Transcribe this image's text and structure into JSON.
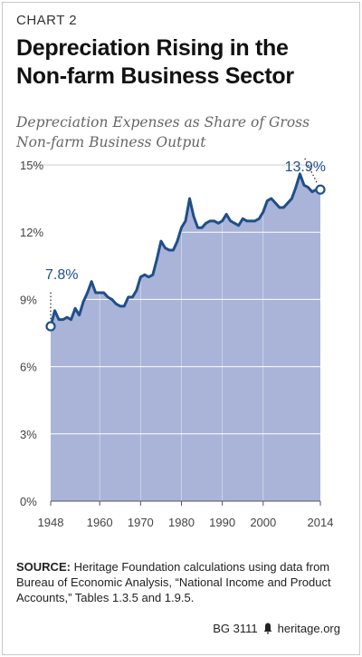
{
  "header": {
    "chart_label": "CHART 2",
    "title": "Depreciation Rising in the Non-farm Business Sector",
    "subtitle": "Depreciation Expenses as Share of Gross Non-farm Business Output"
  },
  "footer": {
    "source_label": "SOURCE:",
    "source_text": "Heritage Foundation calculations using data from Bureau of Economic Analysis, “National Income and Product Accounts,” Tables 1.3.5 and 1.9.5.",
    "report_id": "BG 3111",
    "brand_icon": "liberty-bell-icon",
    "site": "heritage.org"
  },
  "colors": {
    "area": "#a9b4d8",
    "line": "#1f4f8a",
    "grid": "#ffffff",
    "text": "#333333"
  },
  "chart_data": {
    "type": "area",
    "xlim": [
      1948,
      2014
    ],
    "ylim": [
      0,
      15
    ],
    "x_ticks": [
      1948,
      1960,
      1970,
      1980,
      1990,
      2000,
      2014
    ],
    "y_ticks": [
      0,
      3,
      6,
      9,
      12,
      15
    ],
    "y_tick_labels": [
      "0%",
      "3%",
      "6%",
      "9%",
      "12%",
      "15%"
    ],
    "grid": "horizontal",
    "x": [
      1948,
      1949,
      1950,
      1951,
      1952,
      1953,
      1954,
      1955,
      1956,
      1957,
      1958,
      1959,
      1960,
      1961,
      1962,
      1963,
      1964,
      1965,
      1966,
      1967,
      1968,
      1969,
      1970,
      1971,
      1972,
      1973,
      1974,
      1975,
      1976,
      1977,
      1978,
      1979,
      1980,
      1981,
      1982,
      1983,
      1984,
      1985,
      1986,
      1987,
      1988,
      1989,
      1990,
      1991,
      1992,
      1993,
      1994,
      1995,
      1996,
      1997,
      1998,
      1999,
      2000,
      2001,
      2002,
      2003,
      2004,
      2005,
      2006,
      2007,
      2008,
      2009,
      2010,
      2011,
      2012,
      2013,
      2014
    ],
    "values": [
      7.8,
      8.5,
      8.1,
      8.1,
      8.2,
      8.1,
      8.6,
      8.3,
      8.9,
      9.3,
      9.8,
      9.3,
      9.3,
      9.3,
      9.1,
      9.0,
      8.8,
      8.7,
      8.7,
      9.1,
      9.1,
      9.4,
      10.0,
      10.1,
      10.0,
      10.1,
      10.8,
      11.6,
      11.3,
      11.2,
      11.2,
      11.6,
      12.2,
      12.5,
      13.5,
      12.7,
      12.2,
      12.2,
      12.4,
      12.5,
      12.5,
      12.4,
      12.5,
      12.8,
      12.5,
      12.4,
      12.3,
      12.6,
      12.5,
      12.5,
      12.5,
      12.6,
      12.9,
      13.4,
      13.5,
      13.3,
      13.1,
      13.1,
      13.3,
      13.5,
      14.0,
      14.6,
      14.1,
      14.0,
      13.8,
      13.9,
      13.9
    ],
    "annotations": [
      {
        "x": 1948,
        "y": 7.8,
        "label": "7.8%"
      },
      {
        "x": 2014,
        "y": 13.9,
        "label": "13.9%"
      }
    ]
  }
}
